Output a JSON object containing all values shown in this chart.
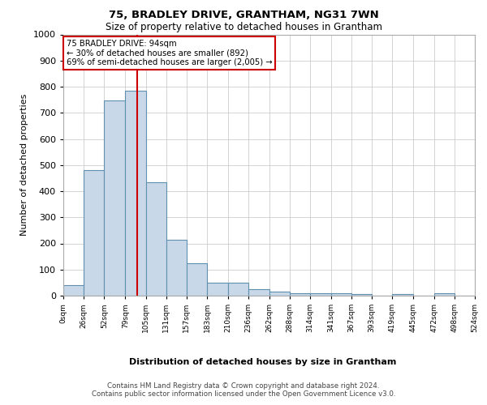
{
  "title1": "75, BRADLEY DRIVE, GRANTHAM, NG31 7WN",
  "title2": "Size of property relative to detached houses in Grantham",
  "xlabel": "Distribution of detached houses by size in Grantham",
  "ylabel": "Number of detached properties",
  "footer1": "Contains HM Land Registry data © Crown copyright and database right 2024.",
  "footer2": "Contains public sector information licensed under the Open Government Licence v3.0.",
  "annotation_line1": "75 BRADLEY DRIVE: 94sqm",
  "annotation_line2": "← 30% of detached houses are smaller (892)",
  "annotation_line3": "69% of semi-detached houses are larger (2,005) →",
  "bin_edges": [
    0,
    26,
    52,
    79,
    105,
    131,
    157,
    183,
    210,
    236,
    262,
    288,
    314,
    341,
    367,
    393,
    419,
    445,
    472,
    498,
    524
  ],
  "bar_heights": [
    40,
    480,
    748,
    785,
    433,
    215,
    125,
    50,
    50,
    25,
    15,
    10,
    10,
    8,
    5,
    0,
    5,
    0,
    10,
    0
  ],
  "bar_color": "#c8d8e8",
  "bar_edge_color": "#6090b0",
  "property_sqm": 94,
  "vline_color": "#cc0000",
  "ylim": [
    0,
    1000
  ],
  "xlim": [
    0,
    524
  ],
  "grid_color": "#cccccc",
  "annotation_box_edge": "#cc0000",
  "annotation_box_face": "#ffffff",
  "tick_labels": [
    "0sqm",
    "26sqm",
    "52sqm",
    "79sqm",
    "105sqm",
    "131sqm",
    "157sqm",
    "183sqm",
    "210sqm",
    "236sqm",
    "262sqm",
    "288sqm",
    "314sqm",
    "341sqm",
    "367sqm",
    "393sqm",
    "419sqm",
    "445sqm",
    "472sqm",
    "498sqm",
    "524sqm"
  ]
}
